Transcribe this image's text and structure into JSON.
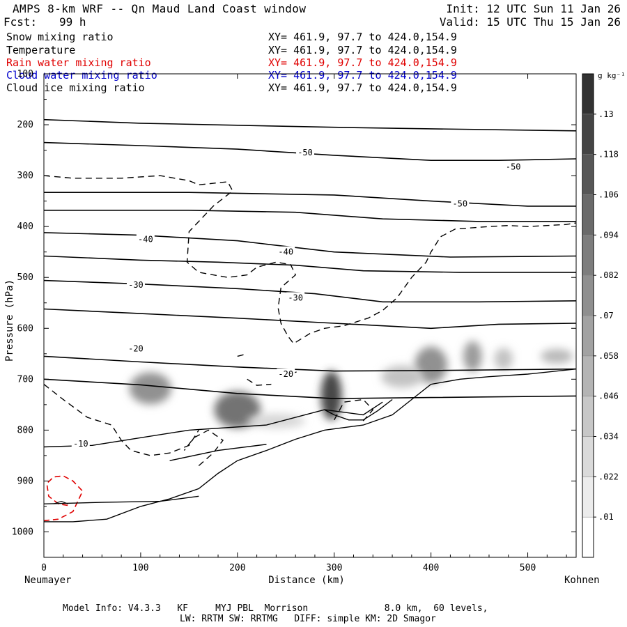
{
  "header": {
    "title": "AMPS 8-km WRF -- Qn Maud Land Coast window",
    "init": "Init: 12 UTC Sun 11 Jan 26",
    "fcst_label": "Fcst:",
    "fcst_value": "99 h",
    "valid": "Valid: 15 UTC Thu 15 Jan 26"
  },
  "fields": [
    {
      "name": "Snow mixing ratio",
      "coords": "XY= 461.9, 97.7 to 424.0,154.9",
      "color": "#000000"
    },
    {
      "name": "Temperature",
      "coords": "XY= 461.9, 97.7 to 424.0,154.9",
      "color": "#000000"
    },
    {
      "name": "Rain water mixing ratio",
      "coords": "XY= 461.9, 97.7 to 424.0,154.9",
      "color": "#e00000"
    },
    {
      "name": "Cloud water mixing ratio",
      "coords": "XY= 461.9, 97.7 to 424.0,154.9",
      "color": "#0000cc"
    },
    {
      "name": "Cloud ice mixing ratio",
      "coords": "XY= 461.9, 97.7 to 424.0,154.9",
      "color": "#000000"
    }
  ],
  "chart_data": {
    "type": "cross-section",
    "title": "AMPS 8-km WRF -- Qn Maud Land Coast window",
    "xlabel": "Distance (km)",
    "ylabel": "Pressure (hPa)",
    "xlim": [
      0,
      550
    ],
    "ylim": [
      1050,
      100
    ],
    "x_ticks": [
      0,
      100,
      200,
      300,
      400,
      500
    ],
    "x_tick_labels": [
      "0",
      "100",
      "200",
      "300",
      "400",
      "500"
    ],
    "y_ticks": [
      100,
      200,
      300,
      400,
      500,
      600,
      700,
      800,
      900,
      1000
    ],
    "y_tick_labels": [
      "100",
      "200",
      "300",
      "400",
      "500",
      "600",
      "700",
      "800",
      "900",
      "1000"
    ],
    "x_endpoint_labels": {
      "left": "Neumayer",
      "right": "Kohnen"
    },
    "colorbar": {
      "unit": "g kg⁻¹",
      "levels": [
        ".01",
        ".022",
        ".034",
        ".046",
        ".058",
        ".07",
        ".082",
        ".094",
        ".106",
        ".118",
        ".13"
      ],
      "values": [
        0.01,
        0.022,
        0.034,
        0.046,
        0.058,
        0.07,
        0.082,
        0.094,
        0.106,
        0.118,
        0.13
      ]
    },
    "terrain_hPa": [
      [
        0,
        980
      ],
      [
        30,
        980
      ],
      [
        65,
        975
      ],
      [
        100,
        950
      ],
      [
        130,
        935
      ],
      [
        160,
        915
      ],
      [
        180,
        885
      ],
      [
        200,
        860
      ],
      [
        230,
        840
      ],
      [
        260,
        818
      ],
      [
        290,
        800
      ],
      [
        330,
        790
      ],
      [
        360,
        770
      ],
      [
        380,
        740
      ],
      [
        400,
        710
      ],
      [
        430,
        700
      ],
      [
        460,
        695
      ],
      [
        500,
        690
      ],
      [
        550,
        680
      ]
    ],
    "temperature_contours_degC": [
      {
        "label": "-50",
        "points": [
          [
            0,
            190
          ],
          [
            100,
            197
          ],
          [
            200,
            201
          ],
          [
            300,
            205
          ],
          [
            400,
            208
          ],
          [
            550,
            212
          ]
        ]
      },
      {
        "label": "-50",
        "points": [
          [
            0,
            235
          ],
          [
            100,
            241
          ],
          [
            200,
            248
          ],
          [
            300,
            260
          ],
          [
            400,
            270
          ],
          [
            470,
            270
          ],
          [
            550,
            267
          ]
        ]
      },
      {
        "label": "-50",
        "points": [
          [
            0,
            333
          ],
          [
            150,
            333
          ],
          [
            300,
            338
          ],
          [
            400,
            350
          ],
          [
            500,
            360
          ],
          [
            550,
            360
          ]
        ]
      },
      {
        "label": "",
        "points": [
          [
            0,
            368
          ],
          [
            150,
            368
          ],
          [
            260,
            372
          ],
          [
            350,
            385
          ],
          [
            450,
            390
          ],
          [
            550,
            390
          ]
        ]
      },
      {
        "label": "-40",
        "points": [
          [
            0,
            412
          ],
          [
            100,
            417
          ],
          [
            200,
            428
          ],
          [
            300,
            450
          ],
          [
            420,
            460
          ],
          [
            550,
            458
          ]
        ]
      },
      {
        "label": "-40",
        "points": [
          [
            0,
            458
          ],
          [
            100,
            466
          ],
          [
            180,
            470
          ],
          [
            260,
            476
          ],
          [
            330,
            487
          ],
          [
            430,
            490
          ],
          [
            550,
            490
          ]
        ]
      },
      {
        "label": "-30",
        "points": [
          [
            0,
            506
          ],
          [
            100,
            513
          ],
          [
            200,
            522
          ],
          [
            280,
            532
          ],
          [
            350,
            548
          ],
          [
            450,
            548
          ],
          [
            550,
            546
          ]
        ]
      },
      {
        "label": "-30",
        "points": [
          [
            0,
            562
          ],
          [
            100,
            571
          ],
          [
            200,
            580
          ],
          [
            300,
            590
          ],
          [
            400,
            600
          ],
          [
            470,
            592
          ],
          [
            550,
            590
          ]
        ]
      },
      {
        "label": "-20",
        "points": [
          [
            0,
            655
          ],
          [
            100,
            666
          ],
          [
            200,
            676
          ],
          [
            300,
            684
          ],
          [
            400,
            683
          ],
          [
            550,
            680
          ]
        ]
      },
      {
        "label": "-20",
        "points": [
          [
            0,
            700
          ],
          [
            100,
            711
          ],
          [
            200,
            728
          ],
          [
            300,
            738
          ],
          [
            400,
            736
          ],
          [
            550,
            733
          ]
        ]
      }
    ],
    "temperature_labels": [
      {
        "text": "-50",
        "x": 270,
        "p": 255
      },
      {
        "text": "-50",
        "x": 485,
        "p": 283
      },
      {
        "text": "-50",
        "x": 430,
        "p": 355
      },
      {
        "text": "-40",
        "x": 105,
        "p": 425
      },
      {
        "text": "-40",
        "x": 250,
        "p": 450
      },
      {
        "text": "-30",
        "x": 95,
        "p": 515
      },
      {
        "text": "-30",
        "x": 260,
        "p": 540
      },
      {
        "text": "-20",
        "x": 95,
        "p": 640
      },
      {
        "text": "-20",
        "x": 250,
        "p": 690
      },
      {
        "text": "-10",
        "x": 38,
        "p": 827
      }
    ]
  },
  "footer": {
    "line1": "Model Info: V4.3.3   KF     MYJ PBL  Morrison              8.0 km,  60 levels,",
    "line2": "LW: RRTM SW: RRTMG   DIFF: simple KM: 2D Smagor"
  }
}
